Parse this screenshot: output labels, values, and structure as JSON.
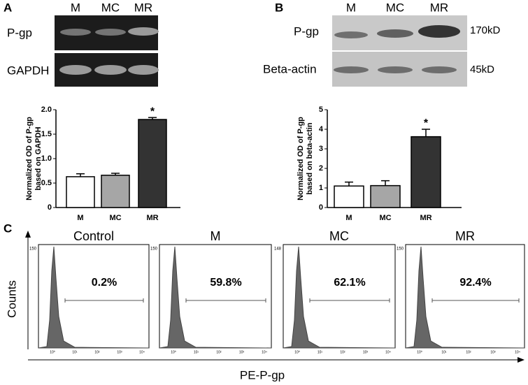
{
  "panel_labels": [
    "A",
    "B",
    "C"
  ],
  "gel_a": {
    "lanes": [
      "M",
      "MC",
      "MR"
    ],
    "rows": [
      "P-gp",
      "GAPDH"
    ]
  },
  "gel_b": {
    "lanes": [
      "M",
      "MC",
      "MR"
    ],
    "rows": [
      "P-gp",
      "Beta-actin"
    ],
    "sizes": [
      "170kD",
      "45kD"
    ]
  },
  "chart_data": [
    {
      "type": "bar",
      "ylabel": [
        "Normalized OD of P-gp",
        "based on GAPDH"
      ],
      "categories": [
        "M",
        "MC",
        "MR"
      ],
      "values": [
        0.63,
        0.66,
        1.8
      ],
      "errors": [
        0.06,
        0.04,
        0.04
      ],
      "colors": [
        "#ffffff",
        "#a6a6a6",
        "#333333"
      ],
      "ylim": [
        0,
        2
      ],
      "yticks": [
        0,
        0.5,
        {
          "value": 1,
          "label": "1.0"
        },
        1.5,
        {
          "value": 2,
          "label": "2.0"
        }
      ],
      "annotations": [
        "",
        "",
        "*"
      ]
    },
    {
      "type": "bar",
      "ylabel": [
        "Normalized OD of P-gp",
        "based on beta-actin"
      ],
      "categories": [
        "M",
        "MC",
        "MR"
      ],
      "values": [
        1.1,
        1.12,
        3.62
      ],
      "errors": [
        0.2,
        0.25,
        0.38
      ],
      "colors": [
        "#ffffff",
        "#a6a6a6",
        "#333333"
      ],
      "ylim": [
        0,
        5
      ],
      "yticks": [
        0,
        1,
        2,
        3,
        4,
        5
      ],
      "annotations": [
        "",
        "",
        "*"
      ]
    }
  ],
  "flow": {
    "ylabel": "Counts",
    "xlabel": "PE-P-gp",
    "xticks": [
      "10⁰",
      "10¹",
      "10²",
      "10³",
      "10⁴"
    ],
    "panels": [
      {
        "title": "Control",
        "ymax": "150",
        "percent": "0.2%"
      },
      {
        "title": "M",
        "ymax": "150",
        "percent": "59.8%"
      },
      {
        "title": "MC",
        "ymax": "148",
        "percent": "62.1%"
      },
      {
        "title": "MR",
        "ymax": "150",
        "percent": "92.4%"
      }
    ]
  }
}
